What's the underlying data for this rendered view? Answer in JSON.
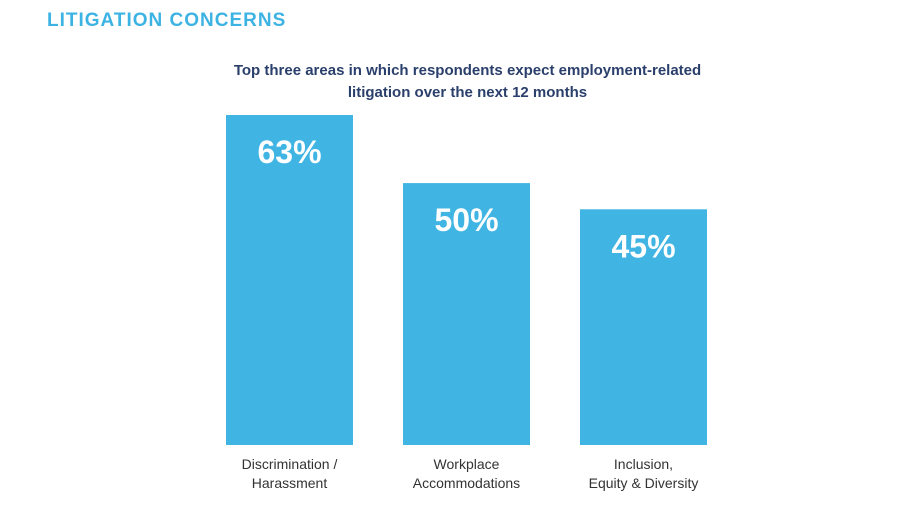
{
  "heading": "LITIGATION CONCERNS",
  "subtitle_lines": [
    "Top three areas in which respondents expect employment-related",
    "litigation over the next 12 months"
  ],
  "colors": {
    "accent": "#3db3e3",
    "bar": "#40b4e3",
    "subtitle": "#2a3f6b",
    "bar_label": "#ffffff",
    "category_label": "#333333"
  },
  "chart_data": {
    "type": "bar",
    "title": "Top three areas in which respondents expect employment-related litigation over the next 12 months",
    "categories": [
      [
        "Discrimination /",
        "Harassment"
      ],
      [
        "Workplace",
        "Accommodations"
      ],
      [
        "Inclusion,",
        "Equity & Diversity"
      ]
    ],
    "values": [
      63,
      50,
      45
    ],
    "value_labels": [
      "63%",
      "50%",
      "45%"
    ],
    "ylim": [
      0,
      63
    ],
    "grid": false,
    "legend": "none"
  }
}
